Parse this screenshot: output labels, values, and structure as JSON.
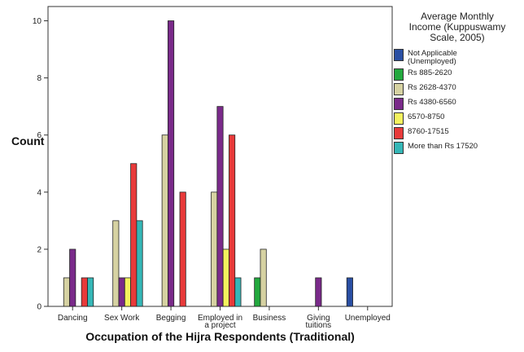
{
  "chart_data": {
    "type": "bar",
    "title": "",
    "xlabel": "Occupation of the Hijra Respondents (Traditional)",
    "ylabel": "Count",
    "ylim": [
      0,
      10.5
    ],
    "yticks": [
      0,
      2,
      4,
      6,
      8,
      10
    ],
    "grid": false,
    "legend_placement": "right",
    "legend_title": [
      "Average Monthly",
      "Income (Kuppuswamy",
      "Scale, 2005)"
    ],
    "categories": [
      [
        "Dancing"
      ],
      [
        "Sex Work"
      ],
      [
        "Begging"
      ],
      [
        "Employed in",
        "a project"
      ],
      [
        "Business"
      ],
      [
        "Giving",
        "tuitions"
      ],
      [
        "Unemployed"
      ]
    ],
    "series": [
      {
        "name": "Not Applicable\n(Unemployed)",
        "color": "#2a4fa3",
        "values": [
          0,
          0,
          0,
          0,
          0,
          0,
          1
        ]
      },
      {
        "name": "Rs 885-2620",
        "color": "#23a83e",
        "values": [
          0,
          0,
          0,
          0,
          1,
          0,
          0
        ]
      },
      {
        "name": "Rs 2628-4370",
        "color": "#d6d2a2",
        "values": [
          1,
          3,
          6,
          4,
          2,
          0,
          0
        ]
      },
      {
        "name": "Rs 4380-6560",
        "color": "#7a2a8a",
        "values": [
          2,
          1,
          10,
          7,
          0,
          1,
          0
        ]
      },
      {
        "name": "6570-8750",
        "color": "#f4f25e",
        "values": [
          0,
          1,
          0,
          2,
          0,
          0,
          0
        ]
      },
      {
        "name": "8760-17515",
        "color": "#e83a3a",
        "values": [
          1,
          5,
          4,
          6,
          0,
          0,
          0
        ]
      },
      {
        "name": "More than Rs 17520",
        "color": "#35b7b7",
        "values": [
          1,
          3,
          0,
          1,
          0,
          0,
          0
        ]
      }
    ]
  }
}
